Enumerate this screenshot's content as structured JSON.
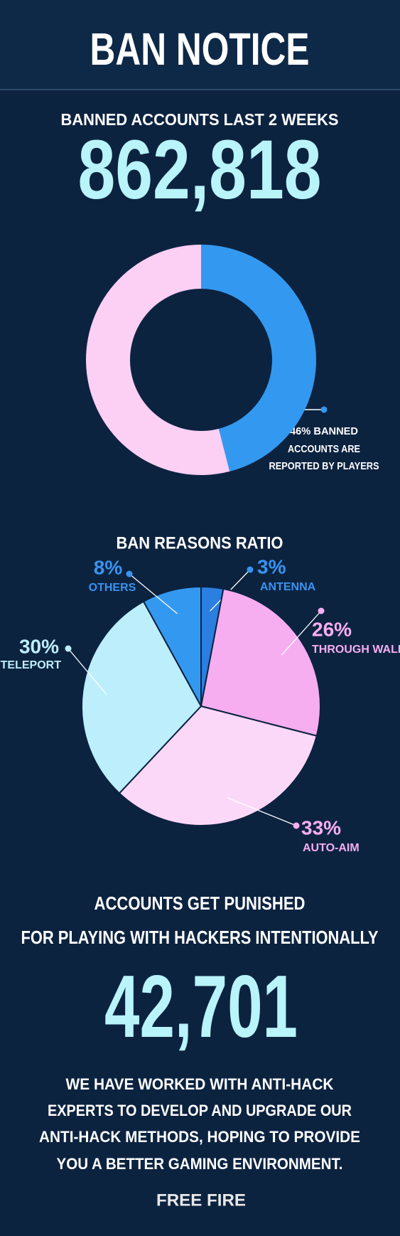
{
  "title": "BAN NOTICE",
  "banned_heading": "BANNED ACCOUNTS LAST 2 WEEKS",
  "banned_count": "862,818",
  "chart_data": [
    {
      "type": "donut",
      "values": [
        46,
        54
      ],
      "colors": [
        "#3399f0",
        "#fccff5"
      ],
      "annotation": [
        "46% BANNED",
        "ACCOUNTS ARE",
        "REPORTED BY PLAYERS"
      ]
    },
    {
      "type": "pie",
      "title": "BAN REASONS RATIO",
      "categories": [
        "ANTENNA",
        "THROUGH WALL",
        "AUTO-AIM",
        "TELEPORT",
        "OTHERS"
      ],
      "values": [
        3,
        26,
        33,
        30,
        8
      ],
      "value_labels": [
        "3%",
        "26%",
        "33%",
        "30%",
        "8%"
      ],
      "colors": [
        "#2a7fe0",
        "#f6aef0",
        "#fcd8f8",
        "#bdeefc",
        "#3399f0"
      ],
      "label_colors": [
        "#3a93f0",
        "#f6aef0",
        "#f6aef0",
        "#bdeefc",
        "#3a93f0"
      ]
    }
  ],
  "punished_heading": [
    "ACCOUNTS GET PUNISHED",
    "FOR PLAYING WITH HACKERS INTENTIONALLY"
  ],
  "punished_count": "42,701",
  "message": [
    "WE HAVE WORKED WITH ANTI-HACK",
    "EXPERTS TO DEVELOP AND UPGRADE OUR",
    "ANTI-HACK METHODS, HOPING TO PROVIDE",
    "YOU A BETTER GAMING ENVIRONMENT."
  ],
  "logo": "FREE FIRE"
}
